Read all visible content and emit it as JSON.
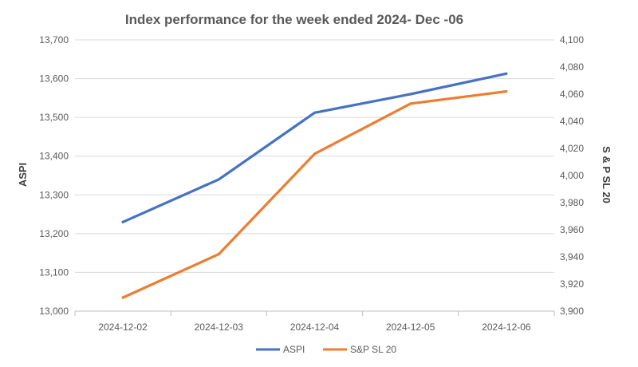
{
  "chart_data": {
    "type": "line",
    "title": "Index performance for the week ended 2024- Dec -06",
    "categories": [
      "2024-12-02",
      "2024-12-03",
      "2024-12-04",
      "2024-12-05",
      "2024-12-06"
    ],
    "y_left": {
      "label": "ASPI",
      "range": [
        13000,
        13700
      ],
      "ticks": [
        "13,000",
        "13,100",
        "13,200",
        "13,300",
        "13,400",
        "13,500",
        "13,600",
        "13,700"
      ],
      "tick_values": [
        13000,
        13100,
        13200,
        13300,
        13400,
        13500,
        13600,
        13700
      ]
    },
    "y_right": {
      "label": "S & P SL 20",
      "range": [
        3900,
        4100
      ],
      "ticks": [
        "3,900",
        "3,920",
        "3,940",
        "3,960",
        "3,980",
        "4,000",
        "4,020",
        "4,040",
        "4,060",
        "4,080",
        "4,100"
      ],
      "tick_values": [
        3900,
        3920,
        3940,
        3960,
        3980,
        4000,
        4020,
        4040,
        4060,
        4080,
        4100
      ]
    },
    "series": [
      {
        "name": "ASPI",
        "axis": "left",
        "color": "#4472c4",
        "values": [
          13230,
          13340,
          13512,
          13560,
          13613
        ]
      },
      {
        "name": "S&P SL 20",
        "axis": "right",
        "color": "#ed7d31",
        "values": [
          3910,
          3942,
          4016,
          4053,
          4062
        ]
      }
    ],
    "grid": true,
    "legend_position": "bottom"
  }
}
